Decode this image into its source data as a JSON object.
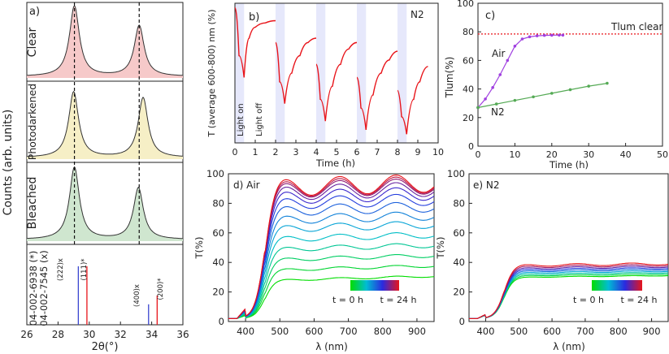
{
  "figure": {
    "panel_a": {
      "label": "a)",
      "ylabel": "Counts (arb. units)",
      "xlabel": "2θ(°)",
      "rows": [
        "Clear",
        "Photodarkened",
        "Bleached"
      ],
      "ref_labels": [
        "04-002-6938 (*)",
        "04-002-7545 (x)"
      ],
      "peak_labels": [
        "(222)x",
        "(111)*",
        "(400)x",
        "(200)*"
      ]
    },
    "panel_b": {
      "label": "b)",
      "species": "N2",
      "ylabel": "T (average 600-800) nm (%)",
      "xlabel": "Time (h)",
      "light_on": "Light on",
      "light_off": "Light off"
    },
    "panel_c": {
      "label": "c)",
      "tlum_clear": "Tlum clear",
      "air_label": "Air",
      "n2_label": "N2",
      "ylabel": "Tlum(%)",
      "xlabel": "Time (h)"
    },
    "panel_d": {
      "label": "d) Air",
      "ylabel": "T(%)",
      "xlabel": "λ (nm)",
      "t_start": "t = 0 h",
      "t_end": "t = 24 h"
    },
    "panel_e": {
      "label": "e) N2",
      "ylabel": "T(%)",
      "xlabel": "λ (nm)",
      "t_start": "t = 0 h",
      "t_end": "t = 24 h"
    }
  },
  "colors": {
    "clear": "#f6c9c9",
    "photodarkened": "#f6efc6",
    "bleached": "#cfe6cf",
    "red": "#e8141a",
    "blue": "#3a46d0",
    "purple": "#a040e0",
    "green": "#55aa55",
    "shade": "#e6e8fb"
  },
  "chart_data": [
    {
      "type": "line",
      "title": "a)",
      "xlabel": "2θ(°)",
      "ylabel": "Counts (arb. units)",
      "xlim": [
        26,
        36
      ],
      "xticks": [
        26,
        28,
        30,
        32,
        34,
        36
      ],
      "series": [
        {
          "name": "Clear",
          "peaks": [
            {
              "x": 29.05,
              "y": 1.0
            },
            {
              "x": 33.2,
              "y": 0.72
            }
          ]
        },
        {
          "name": "Photodarkened",
          "peaks": [
            {
              "x": 29.0,
              "y": 0.9
            },
            {
              "x": 33.45,
              "y": 0.82
            }
          ]
        },
        {
          "name": "Bleached",
          "peaks": [
            {
              "x": 29.05,
              "y": 0.98
            },
            {
              "x": 33.15,
              "y": 0.7
            }
          ]
        }
      ],
      "reference_lines": [
        {
          "label": "(222)x",
          "x": 29.3,
          "height": 1.0,
          "color": "blue"
        },
        {
          "label": "(111)*",
          "x": 29.85,
          "height": 1.0,
          "color": "red"
        },
        {
          "label": "(400)x",
          "x": 33.8,
          "height": 0.35,
          "color": "blue"
        },
        {
          "label": "(200)*",
          "x": 34.35,
          "height": 0.5,
          "color": "red"
        }
      ],
      "dashed_lines_x": [
        29.05,
        33.2
      ]
    },
    {
      "type": "line",
      "title": "b)",
      "annotation": "N2",
      "xlabel": "Time (h)",
      "ylabel": "T (average 600-800) nm (%)",
      "xlim": [
        0,
        10
      ],
      "xticks": [
        0,
        1,
        2,
        3,
        4,
        5,
        6,
        7,
        8,
        9,
        10
      ],
      "light_on_intervals": [
        [
          0,
          0.45
        ],
        [
          2.0,
          2.45
        ],
        [
          4.0,
          4.45
        ],
        [
          6.0,
          6.45
        ],
        [
          8.0,
          8.45
        ]
      ],
      "series": [
        {
          "segments": [
            {
              "x": [
                0,
                0.2,
                0.45
              ],
              "y": [
                71,
                60,
                55
              ]
            },
            {
              "x": [
                0.45,
                0.7,
                1.0,
                1.5,
                2.0
              ],
              "y": [
                55,
                64,
                66.5,
                67.5,
                68
              ]
            },
            {
              "x": [
                2.0,
                2.2,
                2.45
              ],
              "y": [
                63,
                54,
                49
              ]
            },
            {
              "x": [
                2.45,
                2.8,
                3.2,
                3.6,
                4.0
              ],
              "y": [
                49,
                56,
                60,
                63,
                64
              ]
            },
            {
              "x": [
                4.0,
                4.2,
                4.45
              ],
              "y": [
                58,
                50,
                45
              ]
            },
            {
              "x": [
                4.45,
                4.8,
                5.2,
                5.6,
                6.0
              ],
              "y": [
                45,
                53,
                58,
                61.5,
                63
              ]
            },
            {
              "x": [
                6.0,
                6.2,
                6.45
              ],
              "y": [
                55,
                48,
                43
              ]
            },
            {
              "x": [
                6.45,
                6.8,
                7.2,
                7.6,
                8.0
              ],
              "y": [
                43,
                51,
                56,
                59,
                61
              ]
            },
            {
              "x": [
                8.0,
                8.2,
                8.45
              ],
              "y": [
                52,
                46,
                42
              ]
            },
            {
              "x": [
                8.45,
                8.8,
                9.1,
                9.5
              ],
              "y": [
                42,
                50,
                54,
                57.5
              ]
            }
          ]
        }
      ]
    },
    {
      "type": "scatter",
      "title": "c)",
      "xlabel": "Time (h)",
      "ylabel": "Tlum(%)",
      "xlim": [
        0,
        50
      ],
      "ylim": [
        0,
        100
      ],
      "xticks": [
        0,
        10,
        20,
        30,
        40,
        50
      ],
      "yticks": [
        0,
        20,
        40,
        60,
        80,
        100
      ],
      "reference_line": {
        "label": "Tlum clear",
        "y": 78.5
      },
      "series": [
        {
          "name": "Air",
          "x": [
            0,
            2,
            4,
            6,
            8,
            10,
            12,
            14,
            16,
            18,
            20,
            22,
            23
          ],
          "y": [
            27,
            33,
            41,
            50,
            60,
            70,
            75,
            76.5,
            77.2,
            77.5,
            77.6,
            77.7,
            77.7
          ]
        },
        {
          "name": "N2",
          "x": [
            0,
            5,
            10,
            15,
            20,
            25,
            30,
            35
          ],
          "y": [
            27,
            29.5,
            32,
            34.5,
            37,
            39.5,
            42,
            44
          ]
        }
      ]
    },
    {
      "type": "line",
      "title": "d) Air",
      "xlabel": "λ (nm)",
      "ylabel": "T(%)",
      "xlim": [
        350,
        950
      ],
      "ylim": [
        0,
        100
      ],
      "xticks": [
        400,
        500,
        600,
        700,
        800,
        900
      ],
      "yticks": [
        0,
        20,
        40,
        60,
        80,
        100
      ],
      "colorbar": {
        "start": "t = 0 h",
        "end": "t = 24 h"
      },
      "series_plateau_levels": [
        28,
        35,
        42,
        49,
        56,
        63,
        69,
        75,
        80,
        84,
        87,
        89,
        90,
        91
      ]
    },
    {
      "type": "line",
      "title": "e) N2",
      "xlabel": "λ (nm)",
      "ylabel": "T(%)",
      "xlim": [
        350,
        950
      ],
      "ylim": [
        0,
        100
      ],
      "xticks": [
        400,
        500,
        600,
        700,
        800,
        900
      ],
      "yticks": [
        0,
        20,
        40,
        60,
        80,
        100
      ],
      "colorbar": {
        "start": "t = 0 h",
        "end": "t = 24 h"
      },
      "series_plateau_levels": [
        30,
        31,
        32,
        33,
        34,
        35,
        36,
        37,
        38
      ]
    }
  ]
}
